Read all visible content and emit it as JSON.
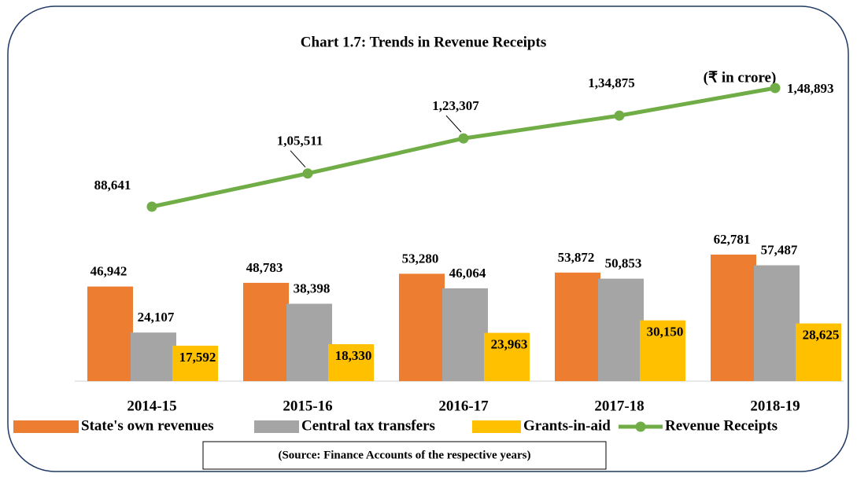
{
  "chart_data": {
    "type": "bar",
    "title": "Chart 1.7: Trends in Revenue Receipts",
    "subtitle": "(₹ in crore)",
    "source": "(Source: Finance Accounts of the respective years)",
    "categories": [
      "2014-15",
      "2015-16",
      "2016-17",
      "2017-18",
      "2018-19"
    ],
    "series": [
      {
        "name": "State's own revenues",
        "color": "#ED7D31",
        "values": [
          46942,
          48783,
          53280,
          53872,
          62781
        ],
        "value_labels": [
          "46,942",
          "48,783",
          "53,280",
          "53,872",
          "62,781"
        ]
      },
      {
        "name": "Central tax transfers",
        "color": "#A5A5A5",
        "values": [
          24107,
          38398,
          46064,
          50853,
          57487
        ],
        "value_labels": [
          "24,107",
          "38,398",
          "46,064",
          "50,853",
          "57,487"
        ]
      },
      {
        "name": "Grants-in-aid",
        "color": "#FFC000",
        "values": [
          17592,
          18330,
          23963,
          30150,
          28625
        ],
        "value_labels": [
          "17,592",
          "18,330",
          "23,963",
          "30,150",
          "28,625"
        ]
      },
      {
        "name": "Revenue Receipts",
        "color": "#70AD47",
        "type": "line",
        "values": [
          88641,
          105511,
          123307,
          134875,
          148893
        ],
        "value_labels": [
          "88,641",
          "1,05,511",
          "1,23,307",
          "1,34,875",
          "1,48,893"
        ]
      }
    ]
  }
}
